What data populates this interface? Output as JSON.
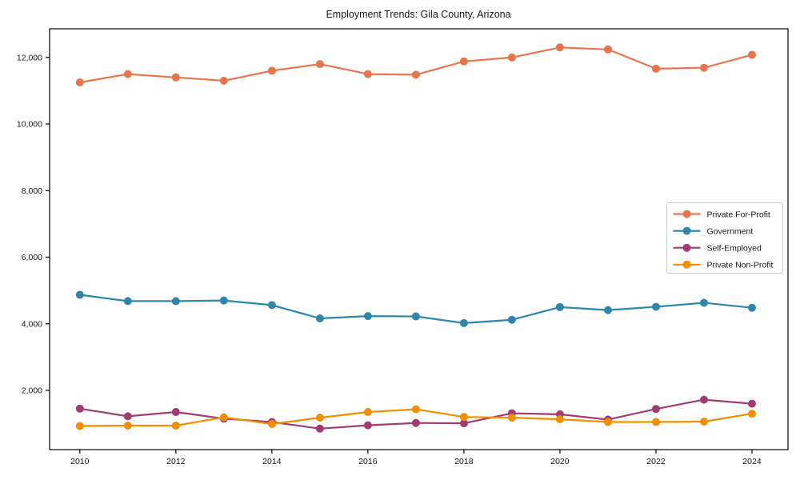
{
  "chart_data": {
    "type": "line",
    "title": "Employment Trends: Gila County, Arizona",
    "xlabel": "",
    "ylabel": "",
    "x": [
      2010,
      2011,
      2012,
      2013,
      2014,
      2015,
      2016,
      2017,
      2018,
      2019,
      2020,
      2021,
      2022,
      2023,
      2024
    ],
    "series": [
      {
        "name": "Private For-Profit",
        "color": "#E8744B",
        "marker": "circle",
        "values": [
          11250,
          11500,
          11400,
          11300,
          11600,
          11800,
          11500,
          11480,
          11880,
          12000,
          12300,
          12240,
          11660,
          11690,
          12080
        ]
      },
      {
        "name": "Government",
        "color": "#2E86AB",
        "marker": "circle",
        "values": [
          4870,
          4680,
          4680,
          4700,
          4560,
          4160,
          4230,
          4220,
          4020,
          4120,
          4500,
          4410,
          4510,
          4630,
          4480
        ]
      },
      {
        "name": "Self-Employed",
        "color": "#A23B72",
        "marker": "circle",
        "values": [
          1450,
          1220,
          1350,
          1150,
          1050,
          850,
          950,
          1020,
          1010,
          1310,
          1280,
          1120,
          1440,
          1720,
          1600
        ]
      },
      {
        "name": "Private Non-Profit",
        "color": "#F18F01",
        "marker": "circle",
        "values": [
          930,
          940,
          940,
          1190,
          990,
          1180,
          1350,
          1430,
          1200,
          1180,
          1130,
          1050,
          1050,
          1060,
          1300
        ]
      }
    ],
    "xticks": [
      2010,
      2012,
      2014,
      2016,
      2018,
      2020,
      2022,
      2024
    ],
    "xtick_labels": [
      "2010",
      "2012",
      "2014",
      "2016",
      "2018",
      "2020",
      "2022",
      "2024"
    ],
    "yticks": [
      2000,
      4000,
      6000,
      8000,
      10000,
      12000
    ],
    "ytick_labels": [
      "2,000",
      "4,000",
      "6,000",
      "8,000",
      "10,000",
      "12,000"
    ],
    "xlim": [
      2009.37,
      2024.75
    ],
    "ylim": [
      220,
      12860
    ],
    "grid": false,
    "legend": {
      "position": "center-right-inside",
      "entries": [
        "Private For-Profit",
        "Government",
        "Self-Employed",
        "Private Non-Profit"
      ]
    },
    "style": {
      "spine_color": "#000000",
      "legend_border_color": "#cccccc",
      "background": "#ffffff"
    }
  }
}
